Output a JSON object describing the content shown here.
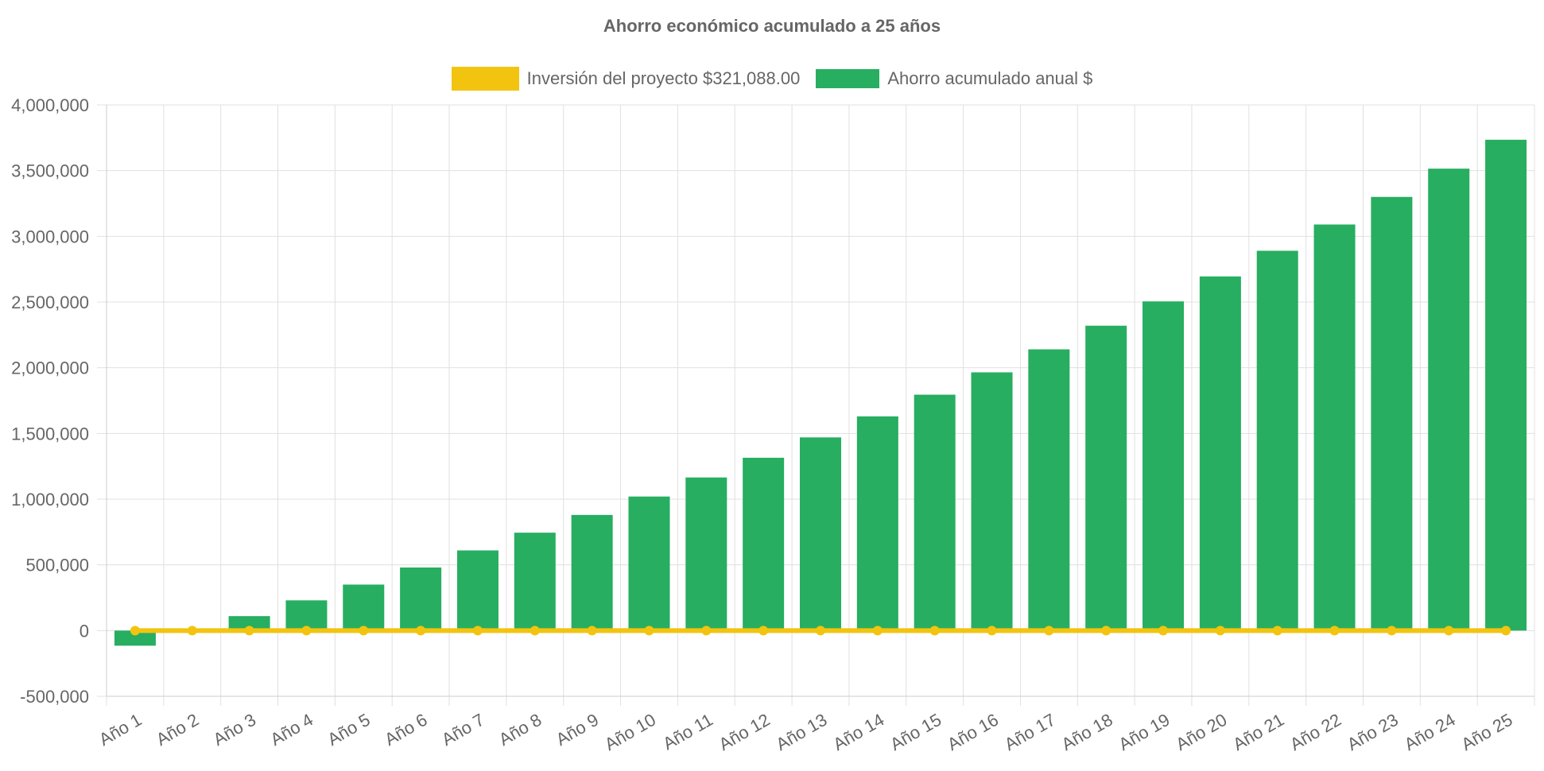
{
  "colors": {
    "investment": "#F2C40F",
    "savings": "#27AE60",
    "grid": "#E0E0E0",
    "text": "#666666"
  },
  "legend": {
    "investment_label": "Inversión del proyecto $321,088.00",
    "savings_label": "Ahorro acumulado anual $"
  },
  "chart_data": {
    "type": "bar",
    "title": "Ahorro económico acumulado a 25 años",
    "categories": [
      "Año 1",
      "Año 2",
      "Año 3",
      "Año 4",
      "Año 5",
      "Año 6",
      "Año 7",
      "Año 8",
      "Año 9",
      "Año 10",
      "Año 11",
      "Año 12",
      "Año 13",
      "Año 14",
      "Año 15",
      "Año 16",
      "Año 17",
      "Año 18",
      "Año 19",
      "Año 20",
      "Año 21",
      "Año 22",
      "Año 23",
      "Año 24",
      "Año 25"
    ],
    "series": [
      {
        "name": "Inversión del proyecto $321,088.00",
        "type": "line",
        "values": [
          0,
          0,
          0,
          0,
          0,
          0,
          0,
          0,
          0,
          0,
          0,
          0,
          0,
          0,
          0,
          0,
          0,
          0,
          0,
          0,
          0,
          0,
          0,
          0,
          0
        ]
      },
      {
        "name": "Ahorro acumulado anual $",
        "type": "bar",
        "values": [
          -115000,
          0,
          110000,
          230000,
          350000,
          480000,
          610000,
          745000,
          880000,
          1020000,
          1165000,
          1315000,
          1470000,
          1630000,
          1795000,
          1965000,
          2140000,
          2320000,
          2505000,
          2695000,
          2890000,
          3090000,
          3300000,
          3515000,
          3735000
        ]
      }
    ],
    "ylim": [
      -500000,
      4000000
    ],
    "yticks": [
      "4,000,000",
      "3,500,000",
      "3,000,000",
      "2,500,000",
      "2,000,000",
      "1,500,000",
      "1,000,000",
      "500,000",
      "0",
      "-500,000"
    ],
    "ytick_values": [
      4000000,
      3500000,
      3000000,
      2500000,
      2000000,
      1500000,
      1000000,
      500000,
      0,
      -500000
    ],
    "grid": true,
    "legend_position": "top-center"
  }
}
